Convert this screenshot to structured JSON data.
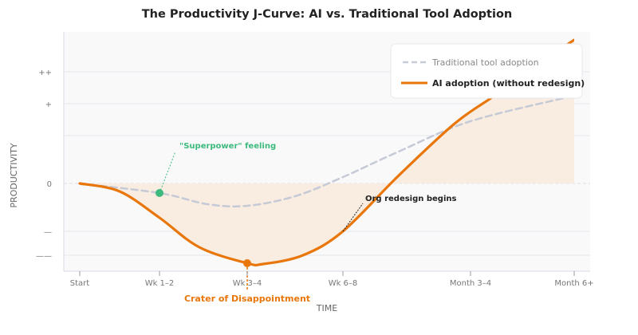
{
  "chart_data": {
    "type": "line",
    "title": "The Productivity J-Curve: AI vs. Traditional Tool Adoption",
    "xlabel": "TIME",
    "ylabel": "PRODUCTIVITY",
    "x_ticks": [
      {
        "x": 0,
        "label": "Start"
      },
      {
        "x": 1,
        "label": "Wk 1–2"
      },
      {
        "x": 2.1,
        "label": "Wk 3–4"
      },
      {
        "x": 3.3,
        "label": "Wk 6–8"
      },
      {
        "x": 4.9,
        "label": "Month 3–4"
      },
      {
        "x": 6.2,
        "label": "Month 6+"
      }
    ],
    "y_ticks": [
      {
        "y": 7,
        "label": "++"
      },
      {
        "y": 5,
        "label": "+"
      },
      {
        "y": 3,
        "label": ""
      },
      {
        "y": 0,
        "label": "0"
      },
      {
        "y": -3,
        "label": "—"
      },
      {
        "y": -4.5,
        "label": "——"
      }
    ],
    "xlim": [
      -0.2,
      6.4
    ],
    "ylim": [
      -5.5,
      9.5
    ],
    "grid": true,
    "legend_position": "top-right",
    "series": [
      {
        "name": "Traditional tool adoption",
        "color": "#c5cad6",
        "style": "dashed",
        "x": [
          0,
          1,
          1.6,
          2.1,
          2.7,
          3.3,
          4.0,
          4.9,
          6.2
        ],
        "y": [
          0,
          -0.6,
          -1.3,
          -1.4,
          -0.8,
          0.4,
          2.0,
          3.9,
          5.5
        ]
      },
      {
        "name": "AI adoption (without redesign)",
        "color": "#e8760a",
        "style": "solid",
        "fill_to_zero": true,
        "fill_color": "#f8ede0",
        "x": [
          0,
          0.5,
          1,
          1.5,
          2.1,
          2.3,
          2.8,
          3.3,
          4.0,
          4.7,
          5.2,
          5.7,
          6.2
        ],
        "y": [
          0,
          -0.5,
          -2.15,
          -4.0,
          -5.0,
          -5.05,
          -4.5,
          -3.0,
          0.5,
          3.75,
          5.5,
          7.3,
          9.0
        ]
      }
    ],
    "annotations": [
      {
        "text": "\"Superpower\" feeling",
        "x": 1,
        "y": -0.6,
        "color": "#3dba7e"
      },
      {
        "text": "Crater of Disappointment",
        "x": 2.1,
        "y": -5.0,
        "color": "#e8760a"
      },
      {
        "text": "Org redesign begins",
        "x": 3.3,
        "y": -3.0,
        "color": "#222222"
      }
    ]
  }
}
